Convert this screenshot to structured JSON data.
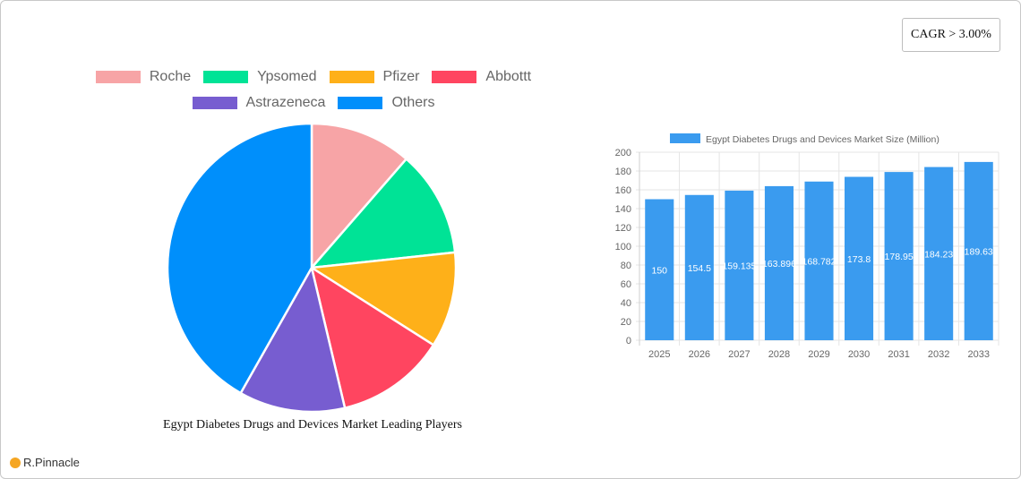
{
  "badge": {
    "cagr_label": "CAGR > 3.00%"
  },
  "pie": {
    "title": "Egypt Diabetes Drugs and Devices Market Leading Players",
    "legend": [
      {
        "label": "Roche",
        "color": "#f7a4a6"
      },
      {
        "label": "Ypsomed",
        "color": "#00e396"
      },
      {
        "label": "Pfizer",
        "color": "#feb019"
      },
      {
        "label": "Abbottt",
        "color": "#ff4560"
      },
      {
        "label": "Astrazeneca",
        "color": "#775dd0"
      },
      {
        "label": "Others",
        "color": "#008ffb"
      }
    ]
  },
  "bar": {
    "legend_label": "Egypt Diabetes Drugs and Devices Market Size (Million)",
    "color": "#3a9bef"
  },
  "brand": {
    "name": "R.Pinnacle"
  },
  "chart_data": [
    {
      "type": "pie",
      "title": "Egypt Diabetes Drugs and Devices Market Leading Players",
      "categories": [
        "Roche",
        "Ypsomed",
        "Pfizer",
        "Abbottt",
        "Astrazeneca",
        "Others"
      ],
      "values": [
        11.4,
        11.9,
        10.7,
        12.3,
        11.9,
        41.8
      ],
      "colors": [
        "#f7a4a6",
        "#00e396",
        "#feb019",
        "#ff4560",
        "#775dd0",
        "#008ffb"
      ],
      "legend_position": "top"
    },
    {
      "type": "bar",
      "title": "",
      "series": [
        {
          "name": "Egypt Diabetes Drugs and Devices Market Size (Million)",
          "values": [
            150,
            154.5,
            159.135,
            163.896,
            168.782,
            173.8,
            178.95,
            184.23,
            189.63
          ]
        }
      ],
      "categories": [
        "2025",
        "2026",
        "2027",
        "2028",
        "2029",
        "2030",
        "2031",
        "2032",
        "2033"
      ],
      "data_labels": [
        "150",
        "154.5",
        "159.135",
        "163.896",
        "168.782",
        "173.8",
        "178.95",
        "184.23",
        "189.63"
      ],
      "yticks": [
        "0",
        "20",
        "40",
        "60",
        "80",
        "100",
        "120",
        "140",
        "160",
        "180",
        "200"
      ],
      "ylim": [
        0,
        200
      ],
      "xlabel": "",
      "ylabel": "",
      "grid": true,
      "legend_position": "top"
    }
  ]
}
